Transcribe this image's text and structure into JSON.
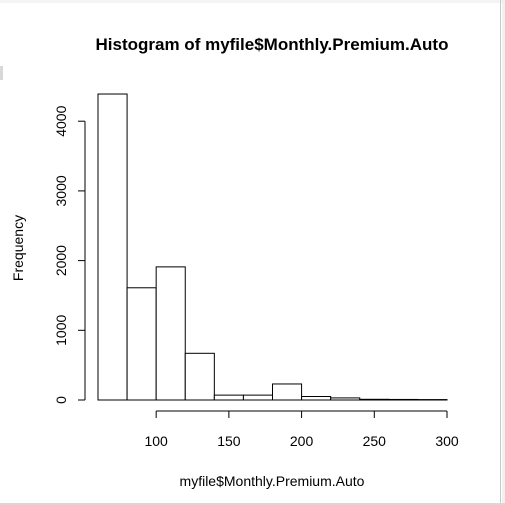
{
  "chart_data": {
    "type": "histogram",
    "title": "Histogram of myfile$Monthly.Premium.Auto",
    "xlabel": "myfile$Monthly.Premium.Auto",
    "ylabel": "Frequency",
    "bins": [
      {
        "start": 60,
        "end": 80,
        "count": 4390
      },
      {
        "start": 80,
        "end": 100,
        "count": 1610
      },
      {
        "start": 100,
        "end": 120,
        "count": 1910
      },
      {
        "start": 120,
        "end": 140,
        "count": 670
      },
      {
        "start": 140,
        "end": 160,
        "count": 70
      },
      {
        "start": 160,
        "end": 180,
        "count": 70
      },
      {
        "start": 180,
        "end": 200,
        "count": 230
      },
      {
        "start": 200,
        "end": 220,
        "count": 50
      },
      {
        "start": 220,
        "end": 240,
        "count": 30
      },
      {
        "start": 240,
        "end": 260,
        "count": 10
      },
      {
        "start": 260,
        "end": 280,
        "count": 8
      },
      {
        "start": 280,
        "end": 300,
        "count": 6
      }
    ],
    "x_ticks": [
      100,
      150,
      200,
      250,
      300
    ],
    "x_tick_labels": [
      "100",
      "150",
      "200",
      "250",
      "300"
    ],
    "y_ticks": [
      0,
      1000,
      2000,
      3000,
      4000
    ],
    "y_tick_labels": [
      "0",
      "1000",
      "2000",
      "3000",
      "4000"
    ],
    "xlim": [
      60,
      300
    ],
    "ylim": [
      0,
      4400
    ],
    "grid": false,
    "bar_fill": "#ffffff",
    "bar_stroke": "#000000"
  }
}
